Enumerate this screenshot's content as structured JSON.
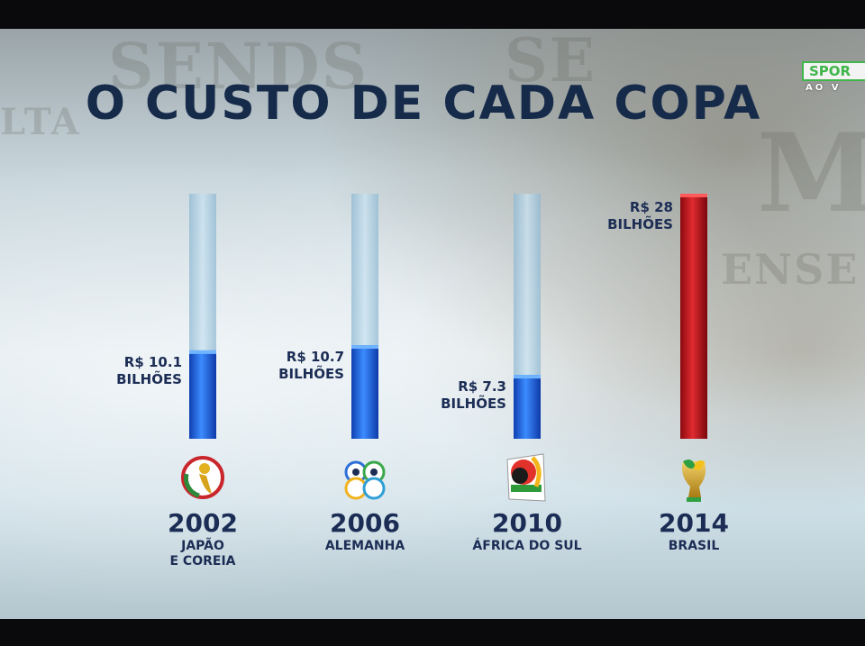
{
  "broadcast": {
    "channel_logo_text": "SPOR",
    "channel_sub_text": "AO V"
  },
  "title": "O CUSTO DE CADA COPA",
  "colors": {
    "title": "#162a4a",
    "bar_blue": "#1c5ee0",
    "bar_red": "#c8141e",
    "track": "#9ec7e0",
    "label": "#1c2d55"
  },
  "chart_data": {
    "type": "bar",
    "title": "O CUSTO DE CADA COPA",
    "unit": "R$ bilhões",
    "ylim": [
      0,
      28
    ],
    "grid": false,
    "legend": "none",
    "categories": [
      "2002",
      "2006",
      "2010",
      "2014"
    ],
    "series": [
      {
        "values": [
          10.1,
          10.7,
          7.3,
          28
        ]
      }
    ],
    "bars": [
      {
        "year": "2002",
        "host": [
          "JAPÃO",
          "E COREIA"
        ],
        "value": 10.1,
        "value_label": [
          "R$ 10.1",
          "BILHÕES"
        ],
        "color": "#1c5ee0",
        "icon": "world-cup-2002-emblem-icon"
      },
      {
        "year": "2006",
        "host": [
          "ALEMANHA"
        ],
        "value": 10.7,
        "value_label": [
          "R$ 10.7",
          "BILHÕES"
        ],
        "color": "#1c5ee0",
        "icon": "world-cup-2006-emblem-icon"
      },
      {
        "year": "2010",
        "host": [
          "ÁFRICA DO SUL"
        ],
        "value": 7.3,
        "value_label": [
          "R$ 7.3",
          "BILHÕES"
        ],
        "color": "#1c5ee0",
        "icon": "world-cup-2010-emblem-icon"
      },
      {
        "year": "2014",
        "host": [
          "BRASIL"
        ],
        "value": 28,
        "value_label": [
          "R$ 28",
          "BILHÕES"
        ],
        "color": "#c8141e",
        "icon": "world-cup-2014-emblem-icon"
      }
    ]
  }
}
